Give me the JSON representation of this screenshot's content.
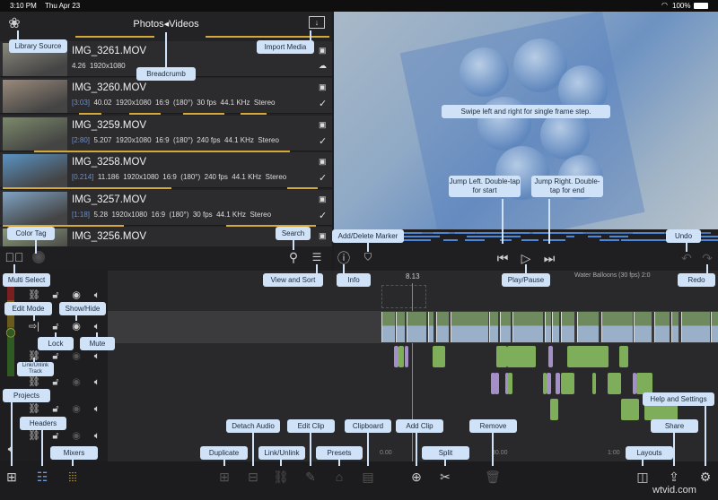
{
  "status": {
    "time": "3:10 PM",
    "date": "Thu Apr 23",
    "battery": "100%"
  },
  "library": {
    "title": "Photos◂Videos",
    "rows": [
      {
        "name": "IMG_3261.MOV",
        "bracket": "",
        "details": "4.26  1920x1080",
        "icons": [
          "badge",
          "cloud"
        ],
        "thumb": "#8b8a7e"
      },
      {
        "name": "IMG_3260.MOV",
        "bracket": "[3:03]",
        "details": "40.02  1920x1080  16:9  (180°)  30 fps  44.1 KHz  Stereo",
        "icons": [
          "badge",
          "check"
        ],
        "thumb": "#9a8a7a"
      },
      {
        "name": "IMG_3259.MOV",
        "bracket": "[2:80]",
        "details": "5.207  1920x1080  16:9  (180°)  240 fps  44.1 KHz  Stereo",
        "icons": [
          "badge",
          "check"
        ],
        "thumb": "#7c8a6a"
      },
      {
        "name": "IMG_3258.MOV",
        "bracket": "[0.214]",
        "details": "11.186  1920x1080  16:9  (180°)  240 fps  44.1 KHz  Stereo",
        "icons": [
          "badge",
          "check"
        ],
        "thumb": "#5a93c4"
      },
      {
        "name": "IMG_3257.MOV",
        "bracket": "[1:18]",
        "details": "5.28  1920x1080  16:9  (180°)  30 fps  44.1 KHz  Stereo",
        "icons": [
          "badge",
          "check"
        ],
        "thumb": "#7fa3c4"
      },
      {
        "name": "IMG_3256.MOV",
        "bracket": "",
        "details": "",
        "icons": [
          "badge"
        ],
        "thumb": "#8a9a7a"
      }
    ]
  },
  "timeline": {
    "playhead": "8.13",
    "project": "Water Balloons (30 fps)  2:0",
    "ruler": [
      "0.00",
      "30.00",
      "1:00"
    ]
  },
  "colors": {
    "accent_gold": "#d4a93a",
    "tooltip": "#cfe2f7",
    "audio_green": "#7fae5a",
    "audio_purple": "#a58fc9",
    "marker_blue": "#4d86d6"
  },
  "tooltips": {
    "library_source": "Library Source",
    "breadcrumb": "Breadcrumb",
    "import_media": "Import Media",
    "color_tag": "Color Tag",
    "search": "Search",
    "add_marker": "Add/Delete Marker",
    "undo": "Undo",
    "multi_select": "Multi Select",
    "view_sort": "View and Sort",
    "info": "Info",
    "play_pause": "Play/Pause",
    "redo": "Redo",
    "edit_mode": "Edit Mode",
    "show_hide": "Show/Hide",
    "lock": "Lock",
    "mute": "Mute",
    "link_track": "Link/Unlink Track",
    "projects": "Projects",
    "headers": "Headers",
    "mixers": "Mixers",
    "detach_audio": "Detach Audio",
    "edit_clip": "Edit Clip",
    "clipboard": "Clipboard",
    "add_clip": "Add Clip",
    "remove": "Remove",
    "help": "Help and Settings",
    "share": "Share",
    "duplicate": "Duplicate",
    "link_unlink": "Link/Unlink",
    "presets": "Presets",
    "split": "Split",
    "layouts": "Layouts",
    "swipe": "Swipe left and right for single frame step.",
    "jump_left": "Jump Left. Double-tap for start",
    "jump_right": "Jump Right. Double-tap for end"
  },
  "watermark": "wtvid.com"
}
